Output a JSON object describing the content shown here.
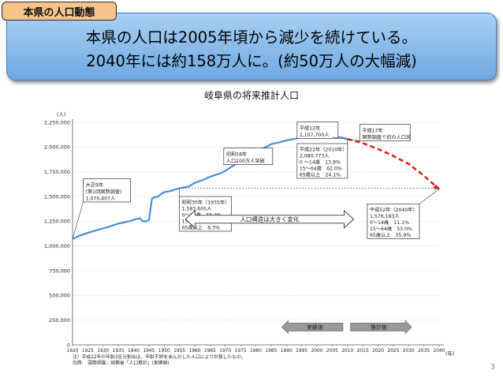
{
  "tag_label": "本県の人口動態",
  "headline": {
    "line1": "本県の人口は2005年頃から減少を続けている。",
    "line2": "2040年には約158万人に。(約50万人の大幅減)"
  },
  "page_number": "3",
  "colors": {
    "actual_line": "#4a8ed8",
    "projection_line": "#e02020",
    "banner": "#8bbcec",
    "tag": "#f4c48c"
  },
  "chart_data": {
    "type": "line",
    "title": "岐阜県の将来推計人口",
    "ylabel": "(人)",
    "xlabel": "(年)",
    "ylim": [
      0,
      2250000
    ],
    "xlim": [
      1920,
      2040
    ],
    "yticks": [
      0,
      250000,
      500000,
      750000,
      1000000,
      1250000,
      1500000,
      1750000,
      2000000,
      2250000
    ],
    "ytick_labels": [
      "0",
      "250,000",
      "500,000",
      "750,000",
      "1,000,000",
      "1,250,000",
      "1,500,000",
      "1,750,000",
      "2,000,000",
      "2,250,000"
    ],
    "xticks": [
      1920,
      1925,
      1930,
      1935,
      1940,
      1945,
      1950,
      1955,
      1960,
      1965,
      1970,
      1975,
      1980,
      1985,
      1990,
      1995,
      2000,
      2005,
      2010,
      2015,
      2020,
      2025,
      2030,
      2035,
      2040
    ],
    "series": [
      {
        "style": "solid",
        "x": [
          1920,
          1922,
          1925,
          1928,
          1930,
          1932,
          1935,
          1938,
          1940,
          1942,
          1943,
          1944,
          1945,
          1946,
          1947,
          1948,
          1950,
          1952,
          1955,
          1958,
          1960,
          1963,
          1965,
          1968,
          1970,
          1973,
          1975,
          1978,
          1980,
          1983,
          1985,
          1988,
          1990,
          1993,
          1995,
          1998,
          2000,
          2003,
          2005,
          2008,
          2010
        ],
        "y": [
          1070407,
          1100000,
          1132000,
          1160000,
          1178000,
          1195000,
          1226000,
          1245000,
          1265000,
          1280000,
          1250000,
          1248000,
          1262000,
          1480000,
          1494000,
          1500000,
          1545000,
          1555000,
          1583605,
          1600000,
          1638000,
          1670000,
          1700000,
          1730000,
          1759000,
          1820000,
          1868000,
          1920000,
          1960000,
          1995000,
          2029000,
          2050000,
          2067000,
          2085000,
          2100000,
          2104000,
          2107700,
          2106000,
          2107000,
          2097000,
          2080773
        ]
      },
      {
        "style": "dashed",
        "x": [
          2010,
          2015,
          2020,
          2025,
          2030,
          2035,
          2040
        ],
        "y": [
          2080773,
          2040000,
          1980000,
          1910000,
          1830000,
          1710000,
          1576183
        ]
      }
    ],
    "reference_line": {
      "y": 1583605,
      "x_from": 1955,
      "x_to": 2040
    },
    "callouts": [
      {
        "id": "taisho9",
        "lines": [
          "大正9年",
          "(第1回国勢調査)",
          "1,070,407人"
        ],
        "point": [
          1920,
          1070407
        ]
      },
      {
        "id": "showa58",
        "lines": [
          "昭和58年",
          "人口200万人突破"
        ],
        "point": [
          1983,
          2000000
        ]
      },
      {
        "id": "heisei12",
        "lines": [
          "平成12年",
          "2,107,700人"
        ],
        "point": [
          2000,
          2107700
        ]
      },
      {
        "id": "heisei17",
        "lines": [
          "平成17年",
          "国勢調査で初の人口減"
        ],
        "point": [
          2005,
          2100000
        ]
      },
      {
        "id": "heisei22",
        "lines": [
          "平成22年（2010年）",
          "2,080,773人",
          "0 ～14歳　13.9%",
          "15～64歳　62.0%",
          "65歳以上　24.1%"
        ],
        "point": [
          2010,
          2080773
        ]
      },
      {
        "id": "showa30",
        "lines": [
          "昭和30年（1955年）",
          "1,583,605人",
          "0～14歳　33.2%",
          "15～64歳　60.5%",
          "65歳以上　6.3%"
        ],
        "point": [
          1955,
          1583605
        ]
      },
      {
        "id": "heisei52",
        "lines": [
          "平成52年（2040年）",
          "1,576,183人",
          "0～14歳　11.1%",
          "15～64歳　53.0%",
          "65歳以上　35.9%"
        ],
        "point": [
          2040,
          1576183
        ]
      }
    ],
    "annotations": {
      "structure_change": "人口構造は大きく変化",
      "actual_label": "実績値",
      "projection_label": "推計値"
    },
    "notes": [
      "注）平成22年の年齢3区分割合は，年齢不詳をあん分した人口により計算したもの。",
      "出典:　国勢調査，総務省「人口推計」(実績値)"
    ]
  }
}
